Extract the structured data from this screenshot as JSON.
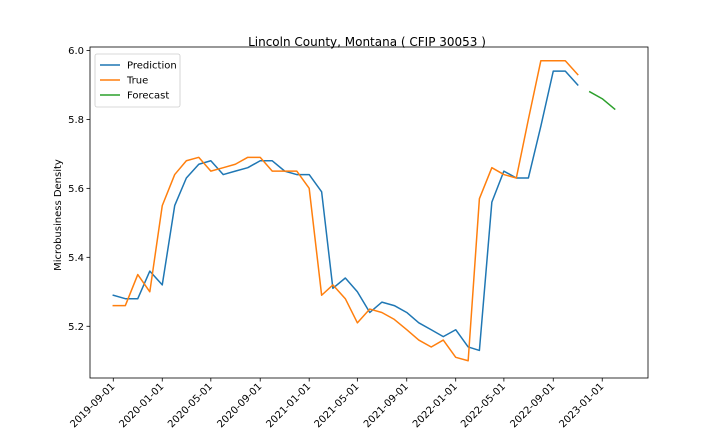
{
  "chart_data": {
    "type": "line",
    "title": "Lincoln County, Montana ( CFIP 30053 )",
    "xlabel": "",
    "ylabel": "Microbusiness Density",
    "ylim": [
      5.05,
      6.01
    ],
    "xlim": [
      "2019-07-05",
      "2023-04-25"
    ],
    "x_ticks": [
      "2019-09-01",
      "2020-01-01",
      "2020-05-01",
      "2020-09-01",
      "2021-01-01",
      "2021-05-01",
      "2021-09-01",
      "2022-01-01",
      "2022-05-01",
      "2022-09-01",
      "2023-01-01"
    ],
    "y_ticks": [
      "5.2",
      "5.4",
      "5.6",
      "5.8",
      "6.0"
    ],
    "legend_position": "top-left",
    "grid": false,
    "series": [
      {
        "name": "Prediction",
        "color": "#1f77b4",
        "x": [
          "2019-09-01",
          "2019-10-01",
          "2019-11-01",
          "2019-12-01",
          "2020-01-01",
          "2020-02-01",
          "2020-03-01",
          "2020-04-01",
          "2020-05-01",
          "2020-06-01",
          "2020-07-01",
          "2020-08-01",
          "2020-09-01",
          "2020-10-01",
          "2020-11-01",
          "2020-12-01",
          "2021-01-01",
          "2021-02-01",
          "2021-03-01",
          "2021-04-01",
          "2021-05-01",
          "2021-06-01",
          "2021-07-01",
          "2021-08-01",
          "2021-09-01",
          "2021-10-01",
          "2021-11-01",
          "2021-12-01",
          "2022-01-01",
          "2022-02-01",
          "2022-03-01",
          "2022-04-01",
          "2022-05-01",
          "2022-06-01",
          "2022-07-01",
          "2022-08-01",
          "2022-09-01",
          "2022-10-01",
          "2022-11-01"
        ],
        "values": [
          5.29,
          5.28,
          5.28,
          5.36,
          5.32,
          5.55,
          5.63,
          5.67,
          5.68,
          5.64,
          5.65,
          5.66,
          5.68,
          5.68,
          5.65,
          5.64,
          5.64,
          5.59,
          5.31,
          5.34,
          5.3,
          5.24,
          5.27,
          5.26,
          5.24,
          5.21,
          5.19,
          5.17,
          5.19,
          5.14,
          5.13,
          5.56,
          5.65,
          5.63,
          5.63,
          5.78,
          5.94,
          5.94,
          5.9
        ]
      },
      {
        "name": "True",
        "color": "#ff7f0e",
        "x": [
          "2019-09-01",
          "2019-10-01",
          "2019-11-01",
          "2019-12-01",
          "2020-01-01",
          "2020-02-01",
          "2020-03-01",
          "2020-04-01",
          "2020-05-01",
          "2020-06-01",
          "2020-07-01",
          "2020-08-01",
          "2020-09-01",
          "2020-10-01",
          "2020-11-01",
          "2020-12-01",
          "2021-01-01",
          "2021-02-01",
          "2021-03-01",
          "2021-04-01",
          "2021-05-01",
          "2021-06-01",
          "2021-07-01",
          "2021-08-01",
          "2021-09-01",
          "2021-10-01",
          "2021-11-01",
          "2021-12-01",
          "2022-01-01",
          "2022-02-01",
          "2022-03-01",
          "2022-04-01",
          "2022-05-01",
          "2022-06-01",
          "2022-07-01",
          "2022-08-01",
          "2022-09-01",
          "2022-10-01",
          "2022-11-01"
        ],
        "values": [
          5.26,
          5.26,
          5.35,
          5.3,
          5.55,
          5.64,
          5.68,
          5.69,
          5.65,
          5.66,
          5.67,
          5.69,
          5.69,
          5.65,
          5.65,
          5.65,
          5.6,
          5.29,
          5.32,
          5.28,
          5.21,
          5.25,
          5.24,
          5.22,
          5.19,
          5.16,
          5.14,
          5.16,
          5.11,
          5.1,
          5.57,
          5.66,
          5.64,
          5.63,
          5.8,
          5.97,
          5.97,
          5.97,
          5.93
        ]
      },
      {
        "name": "Forecast",
        "color": "#2ca02c",
        "x": [
          "2022-12-01",
          "2023-01-01",
          "2023-02-01"
        ],
        "values": [
          5.88,
          5.86,
          5.83
        ]
      }
    ]
  }
}
